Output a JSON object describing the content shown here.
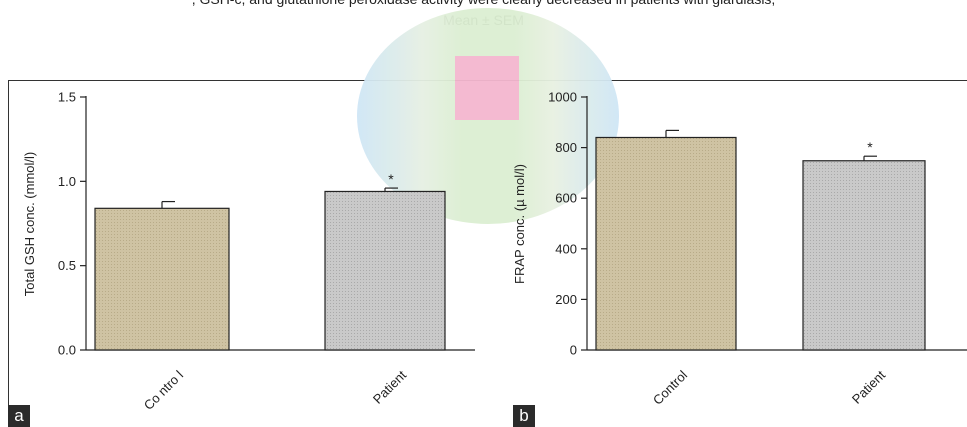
{
  "caption": {
    "line1": ", GSH-c, and glutathione peroxidase activity were clearly decreased in patients with giardiasis,",
    "line2": "Mean ± SEM"
  },
  "colors": {
    "control_fill": "#cfc3a3",
    "patient_fill": "#c9c9c9",
    "axis": "#222222"
  },
  "chart_data": [
    {
      "type": "bar",
      "panel": "a",
      "categories": [
        "Co ntro l",
        "Patient"
      ],
      "values": [
        0.84,
        0.94
      ],
      "errors": [
        0.04,
        0.02
      ],
      "significance": [
        "",
        "*"
      ],
      "ylabel": "Total GSH conc. (mmol/l)",
      "ylim": [
        0,
        1.5
      ],
      "yticks": [
        "0.0",
        "0.5",
        "1.0",
        "1.5"
      ],
      "ytick_values": [
        0,
        0.5,
        1.0,
        1.5
      ]
    },
    {
      "type": "bar",
      "panel": "b",
      "categories": [
        "Control",
        "Patient"
      ],
      "values": [
        840,
        748
      ],
      "errors": [
        28,
        18
      ],
      "significance": [
        "",
        "*"
      ],
      "ylabel": "FRAP conc. (µ mol/l)",
      "ylim": [
        0,
        1000
      ],
      "yticks": [
        "0",
        "200",
        "400",
        "600",
        "800",
        "1000"
      ],
      "ytick_values": [
        0,
        200,
        400,
        600,
        800,
        1000
      ]
    }
  ]
}
